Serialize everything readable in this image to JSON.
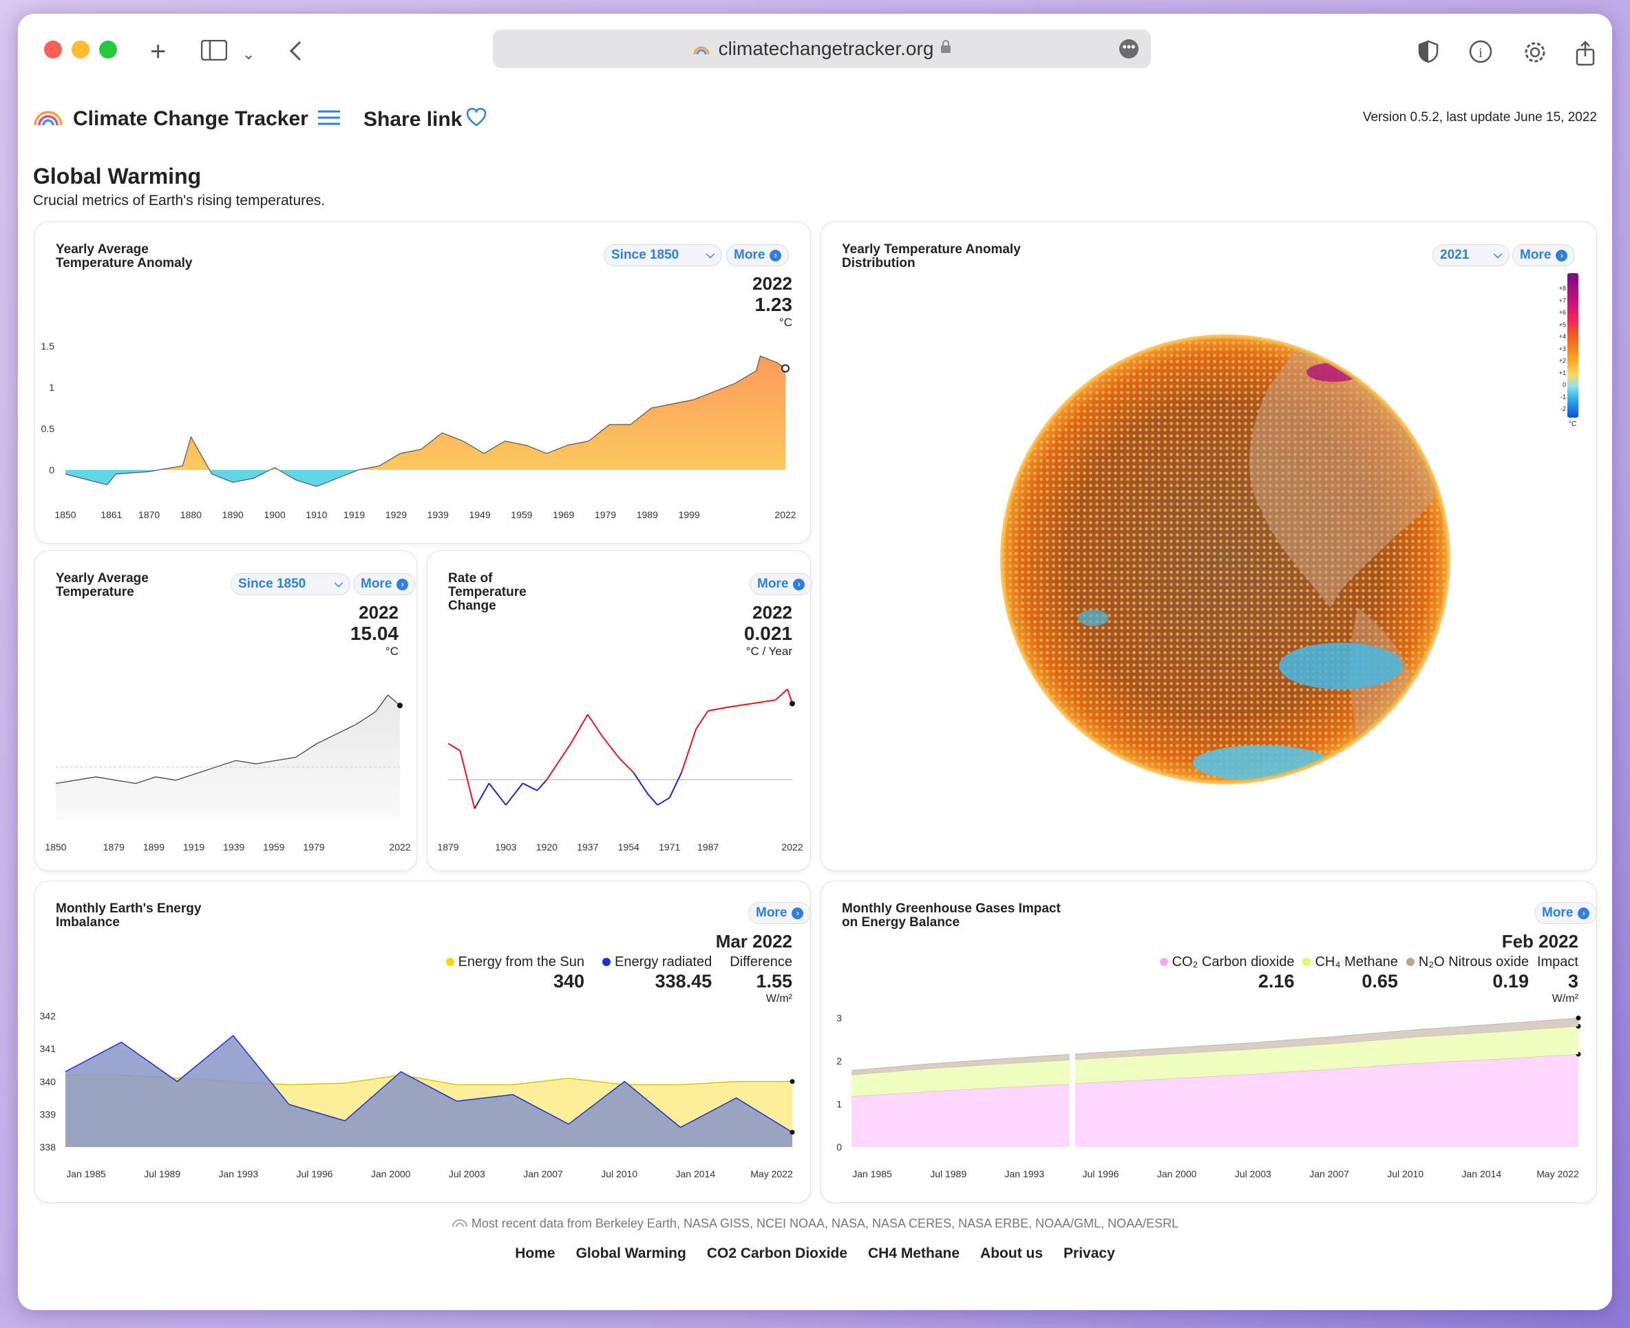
{
  "browser": {
    "url": "climatechangetracker.org"
  },
  "header": {
    "site_title": "Climate Change Tracker",
    "share_label": "Share link",
    "version": "Version 0.5.2, last update June 15, 2022"
  },
  "page": {
    "title": "Global Warming",
    "subtitle": "Crucial metrics of Earth's rising temperatures."
  },
  "cards": {
    "anomaly": {
      "title": "Yearly Average\nTemperature Anomaly",
      "filter": "Since 1850",
      "more": "More",
      "year": "2022",
      "value": "1.23",
      "unit": "°C"
    },
    "distribution": {
      "title": "Yearly Temperature Anomaly\nDistribution",
      "filter": "2021",
      "more": "More",
      "scale_labels": [
        "+8",
        "+7",
        "+6",
        "+5",
        "+4",
        "+3",
        "+2",
        "+1",
        "0",
        "-1",
        "-2"
      ],
      "scale_unit": "°C"
    },
    "avg_temp": {
      "title": "Yearly Average\nTemperature",
      "filter": "Since 1850",
      "more": "More",
      "year": "2022",
      "value": "15.04",
      "unit": "°C"
    },
    "rate": {
      "title": "Rate of\nTemperature\nChange",
      "more": "More",
      "year": "2022",
      "value": "0.021",
      "unit": "°C / Year"
    },
    "energy": {
      "title": "Monthly Earth's Energy\nImbalance",
      "more": "More",
      "date": "Mar 2022",
      "sun_label": "Energy from the Sun",
      "sun_value": "340",
      "rad_label": "Energy radiated",
      "rad_value": "338.45",
      "diff_label": "Difference",
      "diff_value": "1.55",
      "unit": "W/m²"
    },
    "ghg": {
      "title": "Monthly Greenhouse Gases Impact\non Energy Balance",
      "more": "More",
      "date": "Feb 2022",
      "co2_label": "CO₂ Carbon dioxide",
      "co2_value": "2.16",
      "ch4_label": "CH₄ Methane",
      "ch4_value": "0.65",
      "n2o_label": "N₂O Nitrous oxide",
      "n2o_value": "0.19",
      "impact_label": "Impact",
      "impact_value": "3",
      "unit": "W/m²"
    }
  },
  "chart_data": [
    {
      "id": "anomaly",
      "type": "area",
      "x_ticks": [
        "1850",
        "1861",
        "1870",
        "1880",
        "1890",
        "1900",
        "1910",
        "1919",
        "1929",
        "1939",
        "1949",
        "1959",
        "1969",
        "1979",
        "1989",
        "1999",
        "2022"
      ],
      "y_ticks": [
        "1.5",
        "1",
        "0.5",
        "0"
      ],
      "ylim": [
        -0.25,
        1.5
      ],
      "x": [
        1850,
        1860,
        1862,
        1870,
        1878,
        1880,
        1885,
        1890,
        1895,
        1900,
        1905,
        1910,
        1915,
        1920,
        1925,
        1930,
        1935,
        1940,
        1945,
        1950,
        1955,
        1960,
        1965,
        1970,
        1975,
        1980,
        1985,
        1990,
        1995,
        2000,
        2005,
        2010,
        2015,
        2016,
        2020,
        2022
      ],
      "values": [
        -0.05,
        -0.18,
        -0.05,
        -0.02,
        0.05,
        0.4,
        -0.05,
        -0.15,
        -0.1,
        0.03,
        -0.12,
        -0.2,
        -0.1,
        0.0,
        0.05,
        0.2,
        0.25,
        0.45,
        0.35,
        0.2,
        0.35,
        0.3,
        0.2,
        0.3,
        0.35,
        0.55,
        0.55,
        0.75,
        0.8,
        0.85,
        0.95,
        1.05,
        1.2,
        1.38,
        1.3,
        1.23
      ],
      "colors": {
        "positive": "#f9a44f",
        "negative": "#5fd7e8"
      }
    },
    {
      "id": "avg_temp",
      "type": "line",
      "x_ticks": [
        "1850",
        "1879",
        "1899",
        "1919",
        "1939",
        "1959",
        "1979",
        "2022"
      ],
      "x": [
        1850,
        1860,
        1870,
        1880,
        1890,
        1900,
        1910,
        1920,
        1930,
        1940,
        1950,
        1960,
        1970,
        1980,
        1990,
        2000,
        2010,
        2016,
        2022
      ],
      "values": [
        13.85,
        13.9,
        13.95,
        13.9,
        13.85,
        13.95,
        13.9,
        14.0,
        14.1,
        14.2,
        14.15,
        14.2,
        14.25,
        14.45,
        14.6,
        14.75,
        14.95,
        15.2,
        15.04
      ]
    },
    {
      "id": "rate",
      "type": "line",
      "x_ticks": [
        "1879",
        "1903",
        "1920",
        "1937",
        "1954",
        "1971",
        "1987",
        "2022"
      ],
      "x": [
        1879,
        1884,
        1890,
        1896,
        1903,
        1910,
        1916,
        1920,
        1925,
        1930,
        1937,
        1943,
        1950,
        1956,
        1962,
        1966,
        1971,
        1976,
        1982,
        1987,
        1995,
        2005,
        2015,
        2020,
        2022
      ],
      "values": [
        0.01,
        0.008,
        -0.008,
        -0.001,
        -0.007,
        -0.001,
        -0.003,
        0.0,
        0.005,
        0.01,
        0.018,
        0.012,
        0.006,
        0.002,
        -0.004,
        -0.007,
        -0.005,
        0.002,
        0.014,
        0.019,
        0.02,
        0.021,
        0.022,
        0.025,
        0.021
      ],
      "colors": {
        "positive": "#e8141f",
        "negative": "#1a23d6"
      }
    },
    {
      "id": "energy",
      "type": "area",
      "x_ticks": [
        "Jan 1985",
        "Jul 1989",
        "Jan 1993",
        "Jul 1996",
        "Jan 2000",
        "Jul 2003",
        "Jan 2007",
        "Jul 2010",
        "Jan 2014",
        "May 2022"
      ],
      "y_ticks": [
        "342",
        "341",
        "340",
        "339",
        "338"
      ],
      "ylim": [
        338,
        342.2
      ],
      "series": [
        {
          "name": "Energy from the Sun",
          "color": "#f5d90a",
          "values": [
            340.2,
            340.2,
            340.1,
            340.0,
            339.9,
            339.95,
            340.2,
            339.9,
            339.9,
            340.1,
            339.9,
            339.9,
            340.0,
            340.0
          ]
        },
        {
          "name": "Energy radiated",
          "color": "#1b2fd4",
          "values": [
            340.3,
            341.2,
            340.0,
            341.4,
            339.3,
            338.8,
            340.3,
            339.4,
            339.6,
            338.7,
            340.0,
            338.6,
            339.5,
            338.45
          ]
        }
      ]
    },
    {
      "id": "ghg",
      "type": "area",
      "x_ticks": [
        "Jan 1985",
        "Jul 1989",
        "Jan 1993",
        "Jul 1996",
        "Jan 2000",
        "Jul 2003",
        "Jan 2007",
        "Jul 2010",
        "Jan 2014",
        "May 2022"
      ],
      "y_ticks": [
        "3",
        "2",
        "1",
        "0"
      ],
      "ylim": [
        0,
        3.2
      ],
      "series": [
        {
          "name": "CO₂ Carbon dioxide",
          "color": "#ffd6ff",
          "values": [
            1.18,
            1.3,
            1.4,
            1.5,
            1.6,
            1.7,
            1.82,
            1.95,
            2.05,
            2.16
          ]
        },
        {
          "name": "CH₄ Methane",
          "color": "#eeffc0",
          "values": [
            0.5,
            0.53,
            0.55,
            0.56,
            0.57,
            0.58,
            0.59,
            0.61,
            0.63,
            0.65
          ]
        },
        {
          "name": "N₂O Nitrous oxide",
          "color": "#d7cfc5",
          "values": [
            0.1,
            0.11,
            0.12,
            0.13,
            0.14,
            0.15,
            0.16,
            0.17,
            0.18,
            0.19
          ]
        }
      ]
    }
  ],
  "footer": {
    "sources": "Most recent data from Berkeley Earth, NASA GISS, NCEI NOAA, NASA, NASA CERES, NASA ERBE, NOAA/GML, NOAA/ESRL",
    "nav": [
      "Home",
      "Global Warming",
      "CO2 Carbon Dioxide",
      "CH4 Methane",
      "About us",
      "Privacy"
    ]
  }
}
